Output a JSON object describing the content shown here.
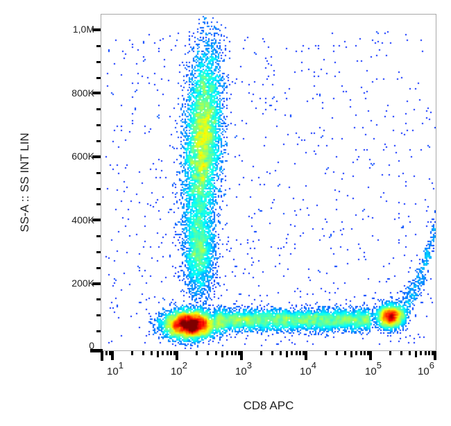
{
  "chart_data": {
    "type": "scatter",
    "subtype": "flow-cytometry-density-dot-plot",
    "title": "",
    "xlabel": "CD8 APC",
    "ylabel": "SS-A :: SS INT LIN",
    "x_scale": "log",
    "y_scale": "linear",
    "xlim": [
      6.6,
      1000000
    ],
    "ylim": [
      -15000,
      1050000
    ],
    "x_ticks": [
      {
        "value": 10,
        "base": "10",
        "exp": "1"
      },
      {
        "value": 100,
        "base": "10",
        "exp": "2"
      },
      {
        "value": 1000,
        "base": "10",
        "exp": "3"
      },
      {
        "value": 10000,
        "base": "10",
        "exp": "4"
      },
      {
        "value": 100000,
        "base": "10",
        "exp": "5"
      },
      {
        "value": 1000000,
        "base": "10",
        "exp": "6"
      }
    ],
    "y_ticks": [
      {
        "value": 0,
        "label": "0"
      },
      {
        "value": 200000,
        "label": "200K"
      },
      {
        "value": 400000,
        "label": "400K"
      },
      {
        "value": 600000,
        "label": "600K"
      },
      {
        "value": 800000,
        "label": "800K"
      },
      {
        "value": 1000000,
        "label": "1,0M"
      }
    ],
    "grid": false,
    "legend": null,
    "colormap": "jet (blue = low density, red = high density)",
    "populations": [
      {
        "name": "granulocytes (CD8-, high SSC)",
        "x_center_log10": 2.4,
        "x_sd_log10": 0.14,
        "y_center": 650000,
        "y_sd": 150000,
        "n": 9000,
        "peak_density": "red"
      },
      {
        "name": "lymphocytes CD8- (low SSC)",
        "x_center_log10": 2.2,
        "x_sd_log10": 0.2,
        "y_center": 70000,
        "y_sd": 22000,
        "n": 6500,
        "peak_density": "red"
      },
      {
        "name": "monocyte/streak between clusters",
        "x_center_log10": 2.35,
        "x_sd_log10": 0.12,
        "y_center": 300000,
        "y_sd": 70000,
        "n": 2200,
        "peak_density": "cyan"
      },
      {
        "name": "CD8- to CD8+ bridge",
        "x_range_log10": [
          2.6,
          5.0
        ],
        "y_center": 85000,
        "y_sd": 17000,
        "n": 5000,
        "peak_density": "cyan"
      },
      {
        "name": "CD8+ T cells",
        "x_center_log10": 5.3,
        "x_sd_log10": 0.11,
        "y_center": 95000,
        "y_sd": 18000,
        "n": 2000,
        "peak_density": "red"
      },
      {
        "name": "CD8+ bright tail",
        "x_range_log10": [
          5.3,
          6.0
        ],
        "y_range": [
          100000,
          380000
        ],
        "n": 600,
        "peak_density": "blue"
      },
      {
        "name": "sparse background events",
        "x_range_log10": [
          0.9,
          6.0
        ],
        "y_range": [
          0,
          1000000
        ],
        "n": 900,
        "peak_density": "blue"
      }
    ]
  },
  "axes": {
    "x": {
      "title": "CD8 APC",
      "tick_labels": [
        {
          "base": "10",
          "exp": "1"
        },
        {
          "base": "10",
          "exp": "2"
        },
        {
          "base": "10",
          "exp": "3"
        },
        {
          "base": "10",
          "exp": "4"
        },
        {
          "base": "10",
          "exp": "5"
        },
        {
          "base": "10",
          "exp": "6"
        }
      ]
    },
    "y": {
      "title": "SS-A :: SS INT LIN",
      "tick_labels": [
        "0",
        "200K",
        "400K",
        "600K",
        "800K",
        "1,0M"
      ]
    }
  },
  "colors": {
    "frame": "#a8a8a8",
    "ticks": "#000000",
    "text": "#222222",
    "low_density": "#0000c8",
    "high_density": "#ff0000"
  }
}
